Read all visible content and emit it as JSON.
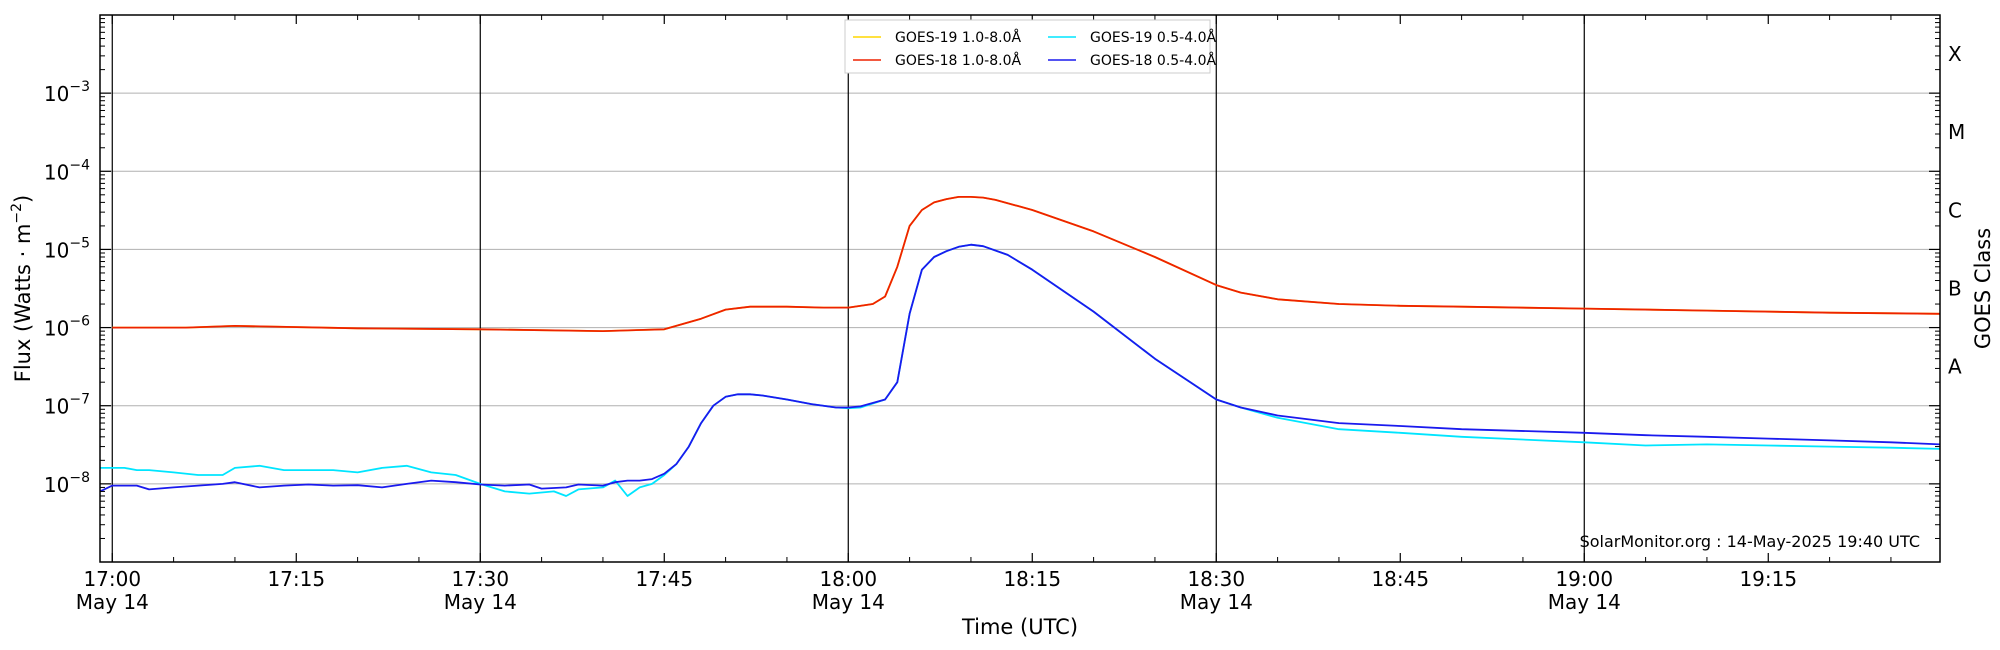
{
  "chart_data": {
    "type": "line",
    "title": "",
    "xlabel": "Time (UTC)",
    "ylabel": "Flux (Watts · m",
    "ylabel_sup": "−2",
    "ylabel_close": ")",
    "y2label": "GOES Class",
    "yscale": "log",
    "xlim": [
      "16:59",
      "19:29"
    ],
    "ylim": [
      1e-09,
      0.01
    ],
    "grid": true,
    "legend_position": "top-center",
    "x_ticks": [
      {
        "label": "17:00",
        "date": "May 14",
        "major": true
      },
      {
        "label": "17:15",
        "date": "",
        "major": false
      },
      {
        "label": "17:30",
        "date": "May 14",
        "major": true
      },
      {
        "label": "17:45",
        "date": "",
        "major": false
      },
      {
        "label": "18:00",
        "date": "May 14",
        "major": true
      },
      {
        "label": "18:15",
        "date": "",
        "major": false
      },
      {
        "label": "18:30",
        "date": "May 14",
        "major": true
      },
      {
        "label": "18:45",
        "date": "",
        "major": false
      },
      {
        "label": "19:00",
        "date": "May 14",
        "major": true
      },
      {
        "label": "19:15",
        "date": "",
        "major": false
      }
    ],
    "y_ticks": [
      {
        "base": "10",
        "exp": "−3"
      },
      {
        "base": "10",
        "exp": "−4"
      },
      {
        "base": "10",
        "exp": "−5"
      },
      {
        "base": "10",
        "exp": "−6"
      },
      {
        "base": "10",
        "exp": "−7"
      },
      {
        "base": "10",
        "exp": "−8"
      }
    ],
    "goes_classes": [
      "X",
      "M",
      "C",
      "B",
      "A"
    ],
    "credit": "SolarMonitor.org : 14-May-2025 19:40 UTC",
    "series": [
      {
        "name": "GOES-19 1.0-8.0Å",
        "color": "#ffd700",
        "x": [
          "17:00",
          "17:06",
          "17:10",
          "17:20",
          "17:30",
          "17:40",
          "17:45",
          "17:48",
          "17:50",
          "17:52",
          "17:55",
          "17:58",
          "18:00",
          "18:02",
          "18:03",
          "18:04",
          "18:05",
          "18:06",
          "18:07",
          "18:08",
          "18:09",
          "18:10",
          "18:11",
          "18:12",
          "18:13",
          "18:15",
          "18:20",
          "18:25",
          "18:30",
          "18:32",
          "18:35",
          "18:40",
          "18:45",
          "18:50",
          "19:00",
          "19:10",
          "19:20",
          "19:29"
        ],
        "values": [
          1e-06,
          1e-06,
          1.05e-06,
          9.8e-07,
          9.5e-07,
          9e-07,
          9.5e-07,
          1.3e-06,
          1.7e-06,
          1.85e-06,
          1.85e-06,
          1.8e-06,
          1.8e-06,
          2e-06,
          2.5e-06,
          6e-06,
          2e-05,
          3.2e-05,
          4e-05,
          4.4e-05,
          4.7e-05,
          4.7e-05,
          4.6e-05,
          4.3e-05,
          3.9e-05,
          3.2e-05,
          1.7e-05,
          8e-06,
          3.5e-06,
          2.8e-06,
          2.3e-06,
          2e-06,
          1.9e-06,
          1.85e-06,
          1.75e-06,
          1.65e-06,
          1.55e-06,
          1.5e-06
        ]
      },
      {
        "name": "GOES-18 1.0-8.0Å",
        "color": "#ee2200",
        "x": [
          "17:00",
          "17:06",
          "17:10",
          "17:20",
          "17:30",
          "17:40",
          "17:45",
          "17:48",
          "17:50",
          "17:52",
          "17:55",
          "17:58",
          "18:00",
          "18:02",
          "18:03",
          "18:04",
          "18:05",
          "18:06",
          "18:07",
          "18:08",
          "18:09",
          "18:10",
          "18:11",
          "18:12",
          "18:13",
          "18:15",
          "18:20",
          "18:25",
          "18:30",
          "18:32",
          "18:35",
          "18:40",
          "18:45",
          "18:50",
          "19:00",
          "19:10",
          "19:20",
          "19:29"
        ],
        "values": [
          1e-06,
          1e-06,
          1.05e-06,
          9.8e-07,
          9.5e-07,
          9e-07,
          9.5e-07,
          1.3e-06,
          1.7e-06,
          1.85e-06,
          1.85e-06,
          1.8e-06,
          1.8e-06,
          2e-06,
          2.5e-06,
          6e-06,
          2e-05,
          3.2e-05,
          4e-05,
          4.4e-05,
          4.7e-05,
          4.7e-05,
          4.6e-05,
          4.3e-05,
          3.9e-05,
          3.2e-05,
          1.7e-05,
          8e-06,
          3.5e-06,
          2.8e-06,
          2.3e-06,
          2e-06,
          1.9e-06,
          1.85e-06,
          1.75e-06,
          1.65e-06,
          1.55e-06,
          1.5e-06
        ]
      },
      {
        "name": "GOES-19 0.5-4.0Å",
        "color": "#00e5ff",
        "x": [
          "16:59",
          "17:01",
          "17:02",
          "17:03",
          "17:05",
          "17:07",
          "17:09",
          "17:10",
          "17:12",
          "17:14",
          "17:16",
          "17:18",
          "17:20",
          "17:22",
          "17:24",
          "17:26",
          "17:28",
          "17:30",
          "17:32",
          "17:34",
          "17:36",
          "17:37",
          "17:38",
          "17:40",
          "17:41",
          "17:42",
          "17:43",
          "17:44",
          "17:45",
          "17:46",
          "17:47",
          "17:48",
          "17:49",
          "17:50",
          "17:51",
          "17:52",
          "17:53",
          "17:55",
          "17:57",
          "17:59",
          "18:00",
          "18:01",
          "18:03",
          "18:04",
          "18:05",
          "18:06",
          "18:07",
          "18:08",
          "18:09",
          "18:10",
          "18:11",
          "18:13",
          "18:15",
          "18:20",
          "18:25",
          "18:30",
          "18:32",
          "18:35",
          "18:40",
          "18:45",
          "18:50",
          "19:00",
          "19:05",
          "19:10",
          "19:15",
          "19:20",
          "19:25",
          "19:29"
        ],
        "values": [
          1.6e-08,
          1.6e-08,
          1.5e-08,
          1.5e-08,
          1.4e-08,
          1.3e-08,
          1.3e-08,
          1.6e-08,
          1.7e-08,
          1.5e-08,
          1.5e-08,
          1.5e-08,
          1.4e-08,
          1.6e-08,
          1.7e-08,
          1.4e-08,
          1.3e-08,
          1e-08,
          8e-09,
          7.5e-09,
          8e-09,
          7e-09,
          8.5e-09,
          9e-09,
          1.1e-08,
          7e-09,
          9e-09,
          1e-08,
          1.3e-08,
          1.8e-08,
          3e-08,
          6e-08,
          1e-07,
          1.3e-07,
          1.4e-07,
          1.4e-07,
          1.35e-07,
          1.2e-07,
          1.05e-07,
          9.5e-08,
          9.3e-08,
          9.5e-08,
          1.2e-07,
          2e-07,
          1.5e-06,
          5.5e-06,
          8e-06,
          9.5e-06,
          1.08e-05,
          1.15e-05,
          1.1e-05,
          8.5e-06,
          5.5e-06,
          1.6e-06,
          4e-07,
          1.2e-07,
          9.5e-08,
          7e-08,
          5e-08,
          4.5e-08,
          4e-08,
          3.4e-08,
          3.1e-08,
          3.2e-08,
          3.1e-08,
          3e-08,
          2.9e-08,
          2.8e-08
        ]
      },
      {
        "name": "GOES-18 0.5-4.0Å",
        "color": "#1a1aee",
        "x": [
          "16:59",
          "17:00",
          "17:02",
          "17:03",
          "17:05",
          "17:07",
          "17:09",
          "17:10",
          "17:12",
          "17:14",
          "17:16",
          "17:18",
          "17:20",
          "17:22",
          "17:24",
          "17:26",
          "17:28",
          "17:30",
          "17:32",
          "17:34",
          "17:35",
          "17:37",
          "17:38",
          "17:40",
          "17:41",
          "17:42",
          "17:43",
          "17:44",
          "17:45",
          "17:46",
          "17:47",
          "17:48",
          "17:49",
          "17:50",
          "17:51",
          "17:52",
          "17:53",
          "17:55",
          "17:57",
          "17:59",
          "18:00",
          "18:01",
          "18:03",
          "18:04",
          "18:05",
          "18:06",
          "18:07",
          "18:08",
          "18:09",
          "18:10",
          "18:11",
          "18:13",
          "18:15",
          "18:20",
          "18:25",
          "18:30",
          "18:32",
          "18:35",
          "18:40",
          "18:45",
          "18:50",
          "19:00",
          "19:05",
          "19:10",
          "19:15",
          "19:20",
          "19:25",
          "19:29"
        ],
        "values": [
          8e-09,
          9.5e-09,
          9.5e-09,
          8.5e-09,
          9e-09,
          9.5e-09,
          1e-08,
          1.05e-08,
          9e-09,
          9.5e-09,
          9.8e-09,
          9.5e-09,
          9.6e-09,
          9e-09,
          1e-08,
          1.1e-08,
          1.05e-08,
          9.8e-09,
          9.5e-09,
          9.8e-09,
          8.7e-09,
          9e-09,
          9.8e-09,
          9.5e-09,
          1.05e-08,
          1.1e-08,
          1.1e-08,
          1.15e-08,
          1.35e-08,
          1.8e-08,
          3e-08,
          6e-08,
          1e-07,
          1.3e-07,
          1.4e-07,
          1.4e-07,
          1.35e-07,
          1.2e-07,
          1.05e-07,
          9.5e-08,
          9.5e-08,
          9.8e-08,
          1.2e-07,
          2e-07,
          1.5e-06,
          5.5e-06,
          8e-06,
          9.5e-06,
          1.08e-05,
          1.15e-05,
          1.1e-05,
          8.5e-06,
          5.5e-06,
          1.6e-06,
          4e-07,
          1.2e-07,
          9.5e-08,
          7.5e-08,
          6e-08,
          5.5e-08,
          5e-08,
          4.5e-08,
          4.2e-08,
          4e-08,
          3.8e-08,
          3.6e-08,
          3.4e-08,
          3.2e-08
        ]
      }
    ]
  }
}
